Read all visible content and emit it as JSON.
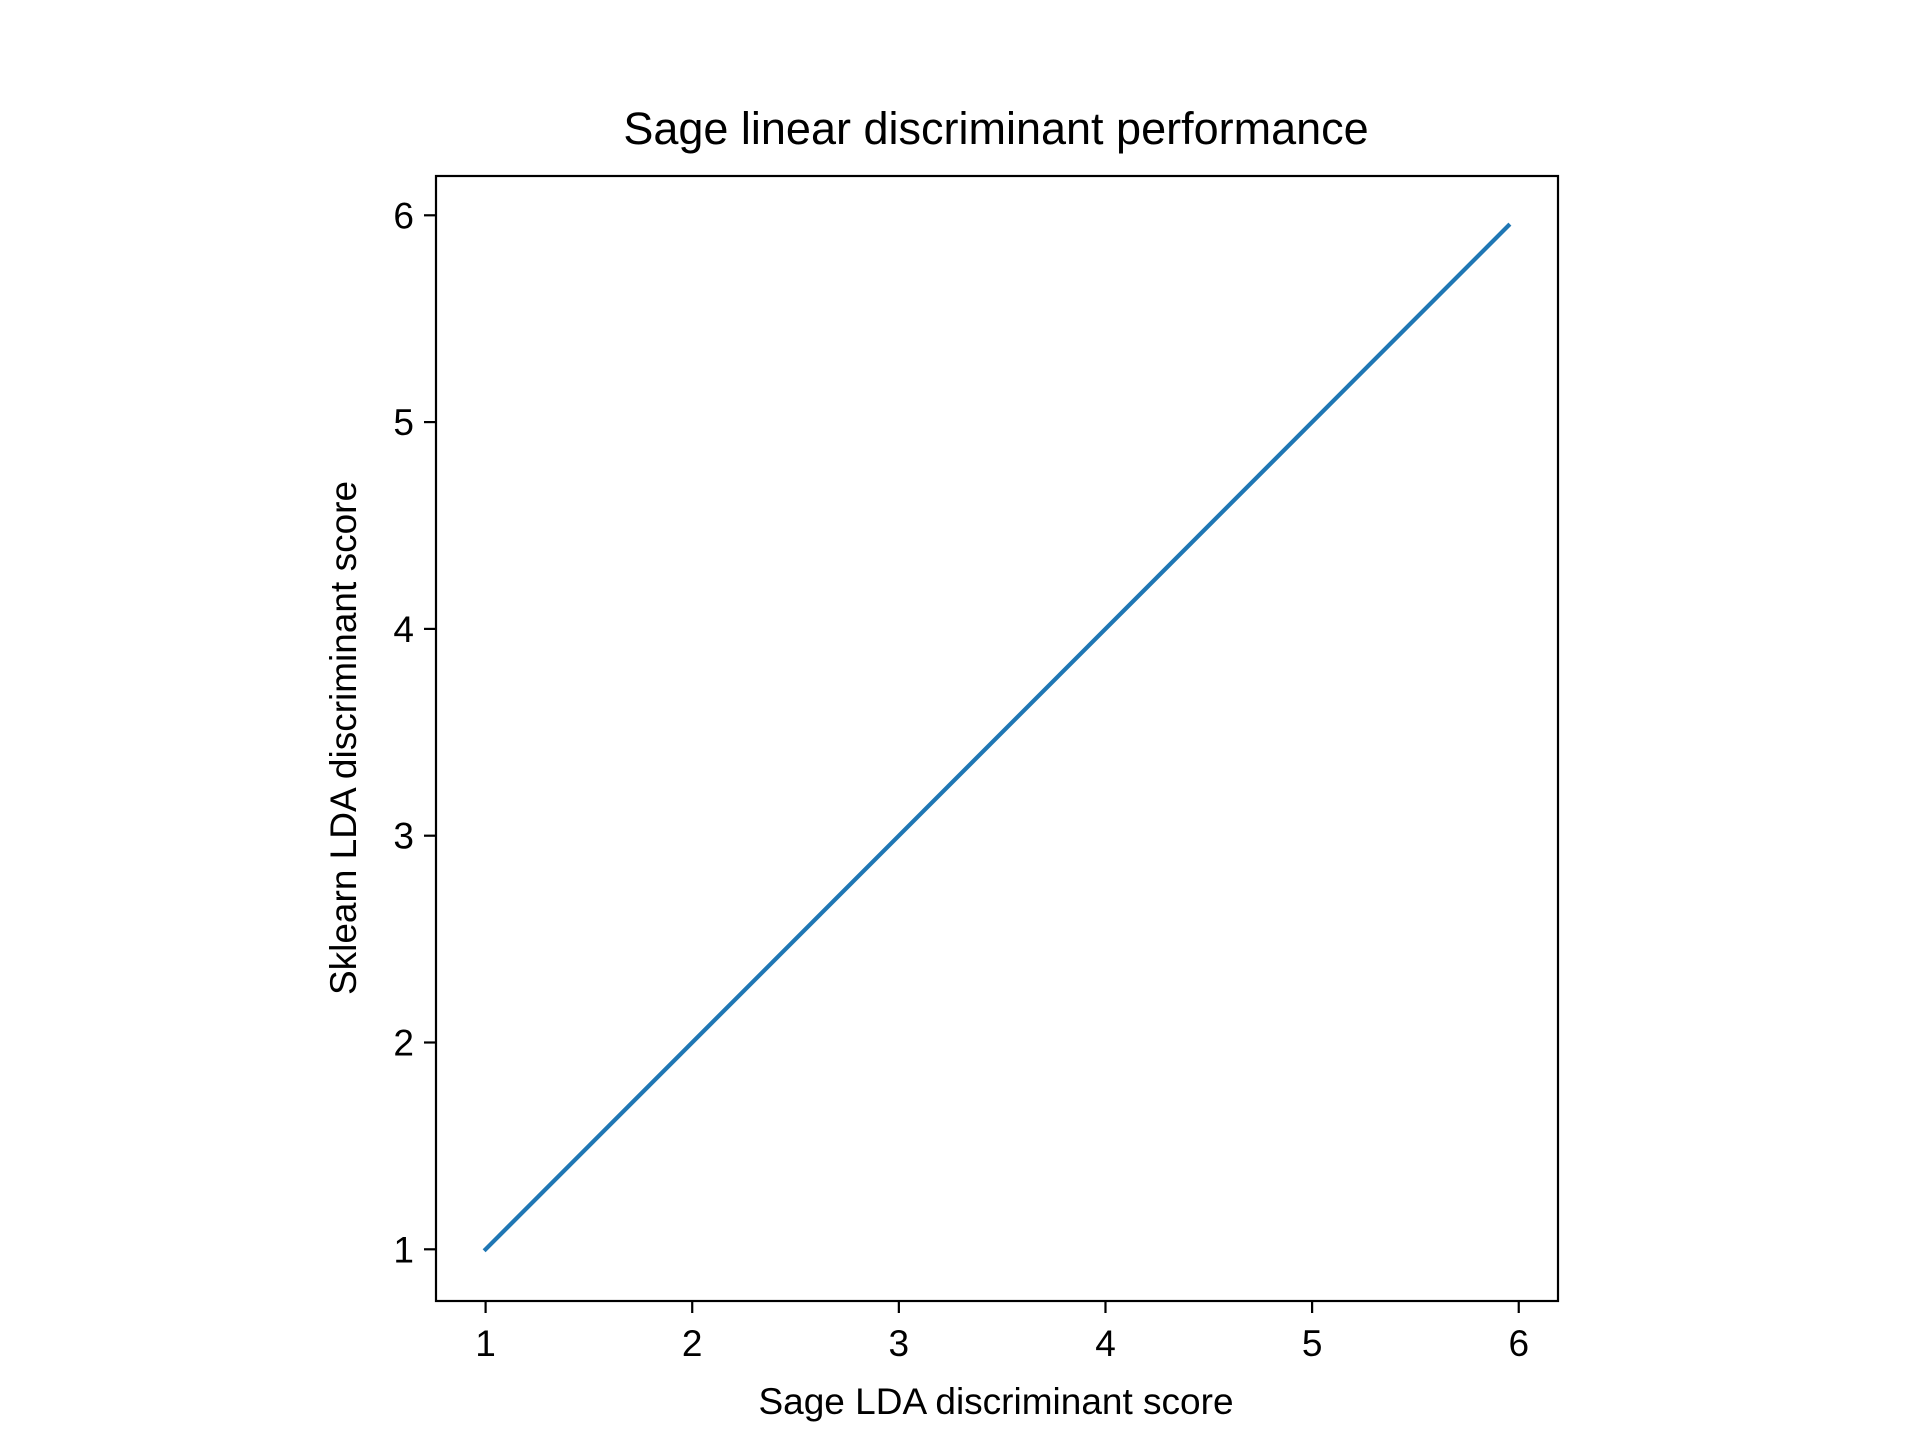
{
  "chart_data": {
    "type": "line",
    "title": "Sage linear discriminant performance",
    "xlabel": "Sage LDA discriminant score",
    "ylabel": "Sklearn LDA discriminant score",
    "xlim": [
      0.76,
      6.19
    ],
    "ylim": [
      0.75,
      6.19
    ],
    "xticks": [
      1,
      2,
      3,
      4,
      5,
      6
    ],
    "yticks": [
      1,
      2,
      3,
      4,
      5,
      6
    ],
    "xtick_labels": [
      "1",
      "2",
      "3",
      "4",
      "5",
      "6"
    ],
    "ytick_labels": [
      "1",
      "2",
      "3",
      "4",
      "5",
      "6"
    ],
    "grid": false,
    "series": [
      {
        "color": "#1f77b4",
        "x": [
          1.0,
          5.95
        ],
        "y": [
          1.0,
          5.95
        ]
      }
    ]
  }
}
